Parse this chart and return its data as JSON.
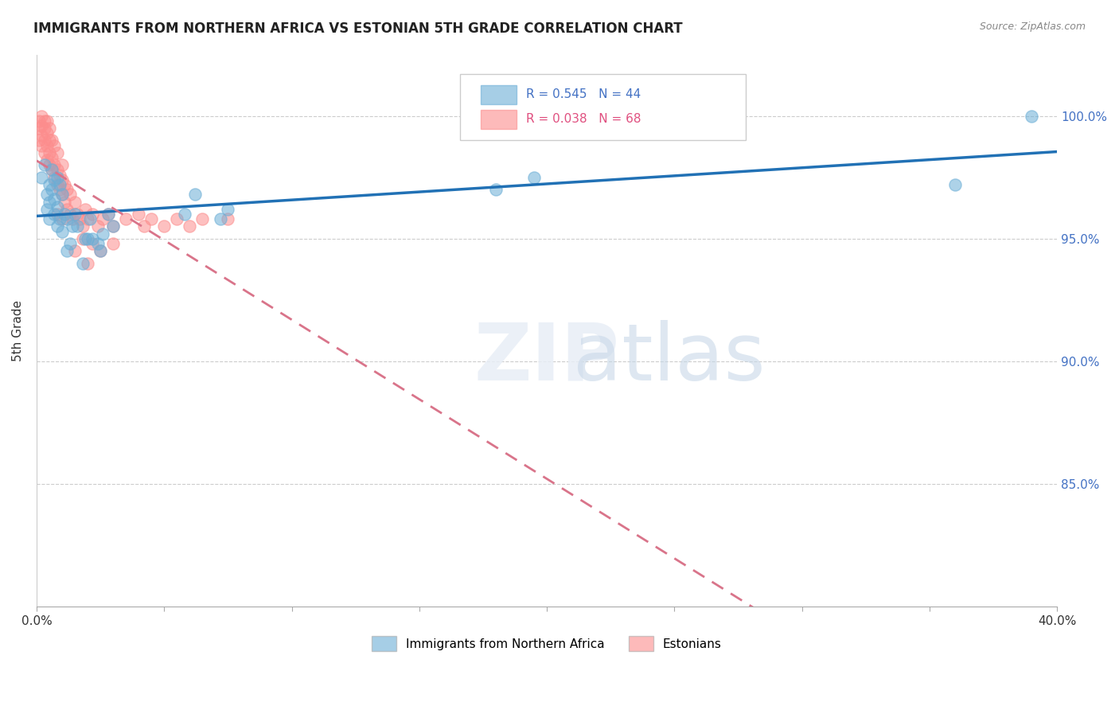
{
  "title": "IMMIGRANTS FROM NORTHERN AFRICA VS ESTONIAN 5TH GRADE CORRELATION CHART",
  "source": "Source: ZipAtlas.com",
  "xlabel": "",
  "ylabel": "5th Grade",
  "xlim": [
    0.0,
    0.4
  ],
  "ylim": [
    0.8,
    1.025
  ],
  "xticks": [
    0.0,
    0.05,
    0.1,
    0.15,
    0.2,
    0.25,
    0.3,
    0.35,
    0.4
  ],
  "xticklabels": [
    "0.0%",
    "",
    "",
    "",
    "",
    "",
    "",
    "",
    "40.0%"
  ],
  "yticks": [
    0.85,
    0.9,
    0.95,
    1.0
  ],
  "yticklabels": [
    "85.0%",
    "90.0%",
    "95.0%",
    "100.0%"
  ],
  "blue_R": 0.545,
  "blue_N": 44,
  "pink_R": 0.038,
  "pink_N": 68,
  "blue_color": "#6baed6",
  "pink_color": "#fc8d8d",
  "blue_line_color": "#2171b5",
  "pink_line_color": "#d9748a",
  "blue_legend_label": "Immigrants from Northern Africa",
  "pink_legend_label": "Estonians",
  "watermark": "ZIPatlas",
  "blue_x": [
    0.002,
    0.003,
    0.004,
    0.004,
    0.005,
    0.005,
    0.005,
    0.006,
    0.006,
    0.007,
    0.007,
    0.007,
    0.008,
    0.008,
    0.008,
    0.009,
    0.009,
    0.01,
    0.01,
    0.011,
    0.012,
    0.012,
    0.013,
    0.014,
    0.015,
    0.016,
    0.018,
    0.019,
    0.02,
    0.021,
    0.022,
    0.024,
    0.025,
    0.026,
    0.028,
    0.03,
    0.058,
    0.062,
    0.072,
    0.075,
    0.18,
    0.195,
    0.36,
    0.39
  ],
  "blue_y": [
    0.975,
    0.98,
    0.962,
    0.968,
    0.958,
    0.965,
    0.972,
    0.97,
    0.978,
    0.96,
    0.966,
    0.974,
    0.955,
    0.963,
    0.975,
    0.958,
    0.972,
    0.953,
    0.968,
    0.96,
    0.945,
    0.958,
    0.948,
    0.955,
    0.96,
    0.955,
    0.94,
    0.95,
    0.95,
    0.958,
    0.95,
    0.948,
    0.945,
    0.952,
    0.96,
    0.955,
    0.96,
    0.968,
    0.958,
    0.962,
    0.97,
    0.975,
    0.972,
    1.0
  ],
  "pink_x": [
    0.001,
    0.001,
    0.001,
    0.002,
    0.002,
    0.002,
    0.002,
    0.003,
    0.003,
    0.003,
    0.003,
    0.004,
    0.004,
    0.004,
    0.004,
    0.005,
    0.005,
    0.005,
    0.005,
    0.006,
    0.006,
    0.006,
    0.007,
    0.007,
    0.007,
    0.008,
    0.008,
    0.008,
    0.009,
    0.009,
    0.01,
    0.01,
    0.01,
    0.011,
    0.011,
    0.012,
    0.012,
    0.013,
    0.013,
    0.014,
    0.015,
    0.016,
    0.017,
    0.018,
    0.019,
    0.02,
    0.022,
    0.024,
    0.026,
    0.028,
    0.03,
    0.035,
    0.04,
    0.042,
    0.045,
    0.05,
    0.055,
    0.06,
    0.065,
    0.075,
    0.015,
    0.02,
    0.018,
    0.022,
    0.025,
    0.03,
    0.008,
    0.01
  ],
  "pink_y": [
    0.99,
    0.995,
    0.998,
    0.988,
    0.992,
    0.996,
    1.0,
    0.985,
    0.99,
    0.995,
    0.998,
    0.982,
    0.988,
    0.993,
    0.998,
    0.98,
    0.985,
    0.99,
    0.995,
    0.978,
    0.983,
    0.99,
    0.975,
    0.98,
    0.988,
    0.972,
    0.978,
    0.985,
    0.97,
    0.976,
    0.968,
    0.974,
    0.98,
    0.965,
    0.972,
    0.962,
    0.97,
    0.96,
    0.968,
    0.958,
    0.965,
    0.96,
    0.958,
    0.955,
    0.962,
    0.958,
    0.96,
    0.955,
    0.958,
    0.96,
    0.955,
    0.958,
    0.96,
    0.955,
    0.958,
    0.955,
    0.958,
    0.955,
    0.958,
    0.958,
    0.945,
    0.94,
    0.95,
    0.948,
    0.945,
    0.948,
    0.96,
    0.958
  ]
}
